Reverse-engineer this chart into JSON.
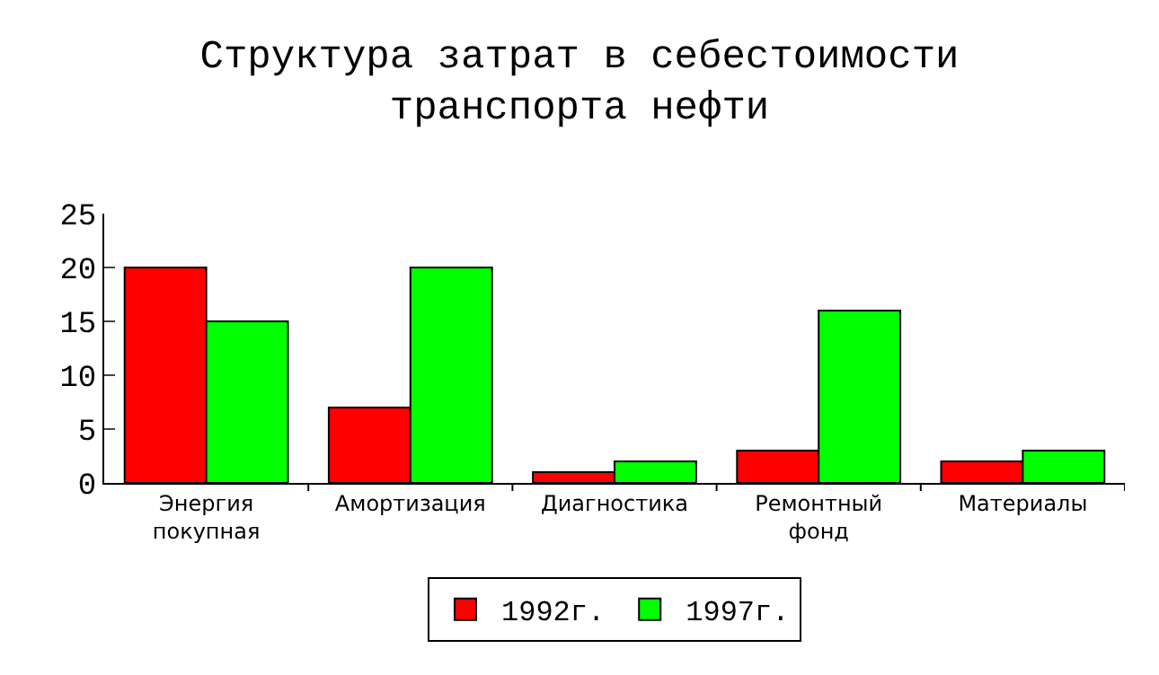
{
  "chart_data": {
    "type": "bar",
    "title": "Структура затрат в себестоимости транспорта нефти",
    "categories": [
      "Энергия покупная",
      "Амортизация",
      "Диагностика",
      "Ремонтный фонд",
      "Материалы"
    ],
    "series": [
      {
        "name": "1992г.",
        "color": "#ff0000",
        "values": [
          20,
          7,
          1,
          3,
          2
        ]
      },
      {
        "name": "1997г.",
        "color": "#00ff00",
        "values": [
          15,
          20,
          2,
          16,
          3
        ]
      }
    ],
    "ylim": [
      0,
      25
    ],
    "yticks": [
      0,
      5,
      10,
      15,
      20,
      25
    ],
    "grid": false,
    "legend": "bottom"
  }
}
